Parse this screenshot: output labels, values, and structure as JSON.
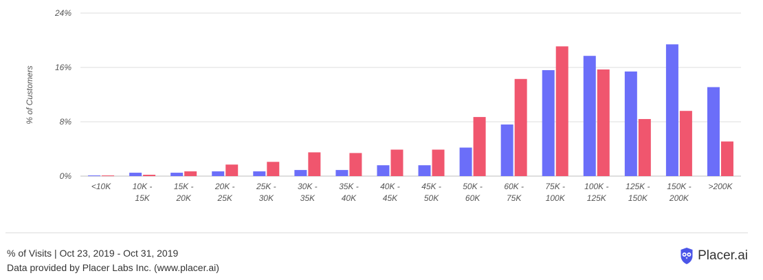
{
  "chart_data": {
    "type": "bar",
    "ylabel": "% of Customers",
    "ylim": [
      0,
      24
    ],
    "yticks": [
      "0%",
      "8%",
      "16%",
      "24%"
    ],
    "ytick_values": [
      0,
      8,
      16,
      24
    ],
    "grid": true,
    "categories": [
      "<10K",
      "10K - 15K",
      "15K - 20K",
      "20K - 25K",
      "25K - 30K",
      "30K - 35K",
      "35K - 40K",
      "40K - 45K",
      "45K - 50K",
      "50K - 60K",
      "60K - 75K",
      "75K - 100K",
      "100K - 125K",
      "125K - 150K",
      "150K - 200K",
      ">200K"
    ],
    "category_lines": [
      [
        "<10K"
      ],
      [
        "10K -",
        "15K"
      ],
      [
        "15K -",
        "20K"
      ],
      [
        "20K -",
        "25K"
      ],
      [
        "25K -",
        "30K"
      ],
      [
        "30K -",
        "35K"
      ],
      [
        "35K -",
        "40K"
      ],
      [
        "40K -",
        "45K"
      ],
      [
        "45K -",
        "50K"
      ],
      [
        "50K -",
        "60K"
      ],
      [
        "60K -",
        "75K"
      ],
      [
        "75K -",
        "100K"
      ],
      [
        "100K -",
        "125K"
      ],
      [
        "125K -",
        "150K"
      ],
      [
        "150K -",
        "200K"
      ],
      [
        ">200K"
      ]
    ],
    "series": [
      {
        "color": "#6b6ef9",
        "values": [
          0.1,
          0.5,
          0.5,
          0.7,
          0.7,
          0.9,
          0.9,
          1.6,
          1.6,
          4.2,
          7.6,
          15.6,
          17.7,
          15.4,
          19.4,
          13.1
        ]
      },
      {
        "color": "#f0566e",
        "values": [
          0.1,
          0.2,
          0.7,
          1.7,
          2.1,
          3.5,
          3.4,
          3.9,
          3.9,
          8.7,
          14.3,
          19.1,
          15.7,
          8.4,
          9.6,
          5.1
        ]
      }
    ]
  },
  "footer": {
    "line1": "% of Visits | Oct 23, 2019 - Oct 31, 2019",
    "line2": "Data provided by Placer Labs Inc. (www.placer.ai)"
  },
  "brand": {
    "name": "Placer.ai",
    "logo_icon": "owl-shield-icon",
    "logo_color": "#4b55e8"
  }
}
